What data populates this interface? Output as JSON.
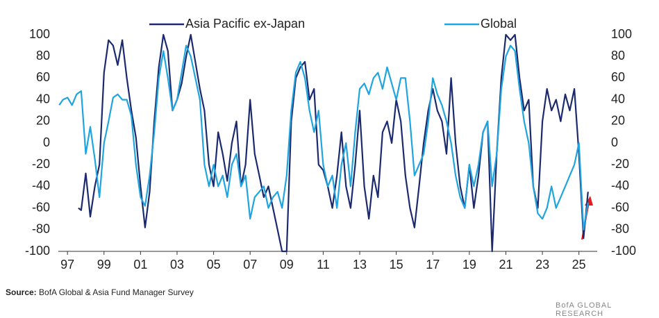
{
  "chart_data": {
    "type": "line",
    "xlim": [
      1996.5,
      2026
    ],
    "xticks": [
      {
        "value": 1997,
        "label": "97"
      },
      {
        "value": 1999,
        "label": "99"
      },
      {
        "value": 2001,
        "label": "01"
      },
      {
        "value": 2003,
        "label": "03"
      },
      {
        "value": 2005,
        "label": "05"
      },
      {
        "value": 2007,
        "label": "07"
      },
      {
        "value": 2009,
        "label": "09"
      },
      {
        "value": 2011,
        "label": "11"
      },
      {
        "value": 2013,
        "label": "13"
      },
      {
        "value": 2015,
        "label": "15"
      },
      {
        "value": 2017,
        "label": "17"
      },
      {
        "value": 2019,
        "label": "19"
      },
      {
        "value": 2021,
        "label": "21"
      },
      {
        "value": 2023,
        "label": "23"
      },
      {
        "value": 2025,
        "label": "25"
      }
    ],
    "ylim": [
      -100,
      100
    ],
    "yticks": [
      -100,
      -80,
      -60,
      -40,
      -20,
      0,
      20,
      40,
      60,
      80,
      100
    ],
    "y2lim": [
      -100,
      100
    ],
    "y2ticks": [
      -100,
      -80,
      -60,
      -40,
      -20,
      0,
      20,
      40,
      60,
      80,
      100
    ],
    "grid": false,
    "legend": "top",
    "series": [
      {
        "name": "Asia Pacific ex-Japan",
        "color": "#1b2a6e",
        "x": [
          1997.6,
          1997.75,
          1998,
          1998.25,
          1998.5,
          1998.75,
          1999,
          1999.25,
          1999.5,
          1999.75,
          2000,
          2000.25,
          2000.5,
          2000.75,
          2001,
          2001.25,
          2001.5,
          2001.75,
          2002,
          2002.25,
          2002.5,
          2002.75,
          2003,
          2003.25,
          2003.5,
          2003.75,
          2004,
          2004.25,
          2004.5,
          2004.75,
          2005,
          2005.25,
          2005.5,
          2005.75,
          2006,
          2006.25,
          2006.5,
          2006.75,
          2007,
          2007.25,
          2007.5,
          2007.75,
          2008,
          2008.25,
          2008.5,
          2008.75,
          2009,
          2009.25,
          2009.5,
          2009.75,
          2010,
          2010.25,
          2010.5,
          2010.75,
          2011,
          2011.25,
          2011.5,
          2011.75,
          2012,
          2012.25,
          2012.5,
          2012.75,
          2013,
          2013.25,
          2013.5,
          2013.75,
          2014,
          2014.25,
          2014.5,
          2014.75,
          2015,
          2015.25,
          2015.5,
          2015.75,
          2016,
          2016.25,
          2016.5,
          2016.75,
          2017,
          2017.25,
          2017.5,
          2017.75,
          2018,
          2018.25,
          2018.5,
          2018.75,
          2019,
          2019.25,
          2019.5,
          2019.75,
          2020,
          2020.25,
          2020.5,
          2020.75,
          2021,
          2021.25,
          2021.5,
          2021.75,
          2022,
          2022.25,
          2022.5,
          2022.75,
          2023,
          2023.25,
          2023.5,
          2023.75,
          2024,
          2024.25,
          2024.5,
          2024.75,
          2025,
          2025.25,
          2025.5
        ],
        "values": [
          -60,
          -62,
          -28,
          -68,
          -40,
          -20,
          65,
          95,
          90,
          72,
          95,
          60,
          30,
          5,
          -40,
          -78,
          -45,
          20,
          70,
          100,
          85,
          30,
          40,
          55,
          80,
          100,
          75,
          50,
          30,
          -20,
          -40,
          10,
          -10,
          -35,
          0,
          20,
          -40,
          -20,
          40,
          -10,
          -30,
          -50,
          -40,
          -60,
          -80,
          -100,
          -100,
          20,
          60,
          70,
          75,
          40,
          50,
          -20,
          -25,
          -40,
          -60,
          -30,
          10,
          -40,
          -60,
          -20,
          30,
          -40,
          -70,
          -30,
          -50,
          10,
          20,
          0,
          40,
          20,
          -30,
          -60,
          -78,
          -40,
          0,
          30,
          50,
          30,
          20,
          -10,
          60,
          0,
          -40,
          -60,
          -20,
          -60,
          -30,
          10,
          20,
          -100,
          -10,
          60,
          100,
          95,
          100,
          60,
          30,
          40,
          -40,
          -60,
          20,
          50,
          30,
          40,
          20,
          45,
          30,
          50,
          -10,
          -88,
          -45
        ]
      },
      {
        "name": "Global",
        "color": "#1ea5e0",
        "x": [
          1996.55,
          1996.75,
          1997,
          1997.25,
          1997.5,
          1997.75,
          1998,
          1998.25,
          1998.5,
          1998.75,
          1999,
          1999.25,
          1999.5,
          1999.75,
          2000,
          2000.25,
          2000.5,
          2000.75,
          2001,
          2001.25,
          2001.5,
          2001.75,
          2002,
          2002.25,
          2002.5,
          2002.75,
          2003,
          2003.25,
          2003.5,
          2003.75,
          2004,
          2004.25,
          2004.5,
          2004.75,
          2005,
          2005.25,
          2005.5,
          2005.75,
          2006,
          2006.25,
          2006.5,
          2006.75,
          2007,
          2007.25,
          2007.5,
          2007.75,
          2008,
          2008.25,
          2008.5,
          2008.75,
          2009,
          2009.25,
          2009.5,
          2009.75,
          2010,
          2010.25,
          2010.5,
          2010.75,
          2011,
          2011.25,
          2011.5,
          2011.75,
          2012,
          2012.25,
          2012.5,
          2012.75,
          2013,
          2013.25,
          2013.5,
          2013.75,
          2014,
          2014.25,
          2014.5,
          2014.75,
          2015,
          2015.25,
          2015.5,
          2015.75,
          2016,
          2016.25,
          2016.5,
          2016.75,
          2017,
          2017.25,
          2017.5,
          2017.75,
          2018,
          2018.25,
          2018.5,
          2018.75,
          2019,
          2019.25,
          2019.5,
          2019.75,
          2020,
          2020.25,
          2020.5,
          2020.75,
          2021,
          2021.25,
          2021.5,
          2021.75,
          2022,
          2022.25,
          2022.5,
          2022.75,
          2023,
          2023.25,
          2023.5,
          2023.75,
          2024,
          2024.25,
          2024.5,
          2024.75,
          2025,
          2025.25,
          2025.5
        ],
        "values": [
          35,
          40,
          42,
          35,
          45,
          48,
          -10,
          15,
          -15,
          -50,
          0,
          20,
          42,
          45,
          40,
          40,
          25,
          -20,
          -50,
          -58,
          -30,
          10,
          60,
          85,
          60,
          30,
          40,
          65,
          90,
          80,
          60,
          40,
          -20,
          -40,
          -20,
          -40,
          -30,
          -50,
          -20,
          -10,
          -40,
          -30,
          -70,
          -50,
          -45,
          -40,
          -60,
          -50,
          -45,
          -60,
          -30,
          30,
          65,
          75,
          60,
          30,
          10,
          30,
          -20,
          -40,
          -30,
          -60,
          -20,
          0,
          -40,
          10,
          50,
          55,
          45,
          60,
          65,
          50,
          70,
          55,
          40,
          60,
          60,
          20,
          -30,
          -20,
          -10,
          20,
          60,
          45,
          35,
          20,
          0,
          -30,
          -50,
          -60,
          -20,
          -40,
          -20,
          10,
          20,
          -40,
          -10,
          50,
          80,
          90,
          85,
          50,
          20,
          0,
          -40,
          -65,
          -70,
          -60,
          -40,
          -60,
          -50,
          -40,
          -30,
          -20,
          0,
          -80,
          -55
        ]
      }
    ],
    "source": {
      "label": "Source:",
      "text": "BofA Global & Asia Fund Manager Survey"
    },
    "credit": "BofA GLOBAL RESEARCH"
  }
}
